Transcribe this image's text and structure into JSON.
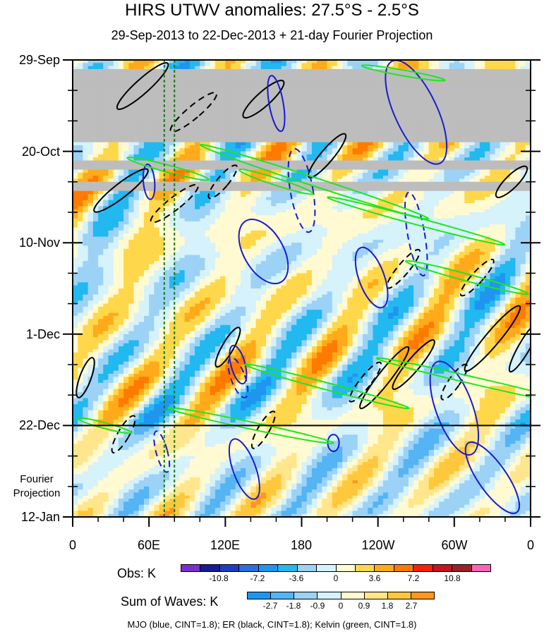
{
  "chart_data": {
    "type": "heatmap",
    "title": "HIRS UTWV anomalies: 27.5°S - 2.5°S",
    "subtitle": "29-Sep-2013 to 22-Dec-2013 + 21-day Fourier Projection",
    "y_tick_labels": [
      "29-Sep",
      "20-Oct",
      "10-Nov",
      "1-Dec",
      "22-Dec",
      "12-Jan"
    ],
    "y_tick_days": [
      0,
      21,
      42,
      63,
      84,
      105
    ],
    "y_axis": "time (days since 29-Sep-2013), increasing downward",
    "x_tick_labels": [
      "0",
      "60E",
      "120E",
      "180",
      "120W",
      "60W",
      "0"
    ],
    "x_tick_lons": [
      0,
      60,
      120,
      180,
      240,
      300,
      360
    ],
    "x_axis": "longitude (degrees east)",
    "projection_label": "Fourier Projection",
    "projection_start_day": 84,
    "missing_data_bands_days": [
      [
        2,
        19
      ],
      [
        23,
        25
      ],
      [
        28,
        30
      ]
    ],
    "reference_longitudes_dashed_green": [
      72,
      80
    ],
    "obs_colorbar": {
      "name": "Obs: K",
      "tick_labels": [
        "-10.8",
        "-7.2",
        "-3.6",
        "0",
        "3.6",
        "7.2",
        "10.8"
      ],
      "levels": [
        -12.6,
        -10.8,
        -9.0,
        -7.2,
        -5.4,
        -3.6,
        -1.8,
        0,
        1.8,
        3.6,
        5.4,
        7.2,
        9.0,
        10.8,
        12.6
      ],
      "colors": [
        "#7b2fd0",
        "#1a1a9c",
        "#1e3cc8",
        "#2a6ee6",
        "#1e96f0",
        "#22b8f0",
        "#9cd2f6",
        "#d6f2fb",
        "#fffad2",
        "#ffd74a",
        "#ffaa1a",
        "#ff7a00",
        "#ff1e00",
        "#c8141e",
        "#a01e28",
        "#ff64b4"
      ]
    },
    "waves_colorbar": {
      "name": "Sum of Waves: K",
      "tick_labels": [
        "-2.7",
        "-1.8",
        "-0.9",
        "0",
        "0.9",
        "1.8",
        "2.7"
      ],
      "levels": [
        -2.7,
        -1.8,
        -0.9,
        0,
        0.9,
        1.8,
        2.7
      ],
      "colors": [
        "#1e96f0",
        "#54b4f4",
        "#9cd2f6",
        "#d6f2fb",
        "#fffad2",
        "#ffe68c",
        "#ffc83c",
        "#ff961e"
      ]
    },
    "contours": [
      {
        "wave": "MJO",
        "color": "#1a1ad2",
        "cint": 1.8
      },
      {
        "wave": "ER",
        "color": "#000000",
        "cint": 1.8
      },
      {
        "wave": "Kelvin",
        "color": "#1ee61e",
        "cint": 1.8
      }
    ],
    "footer": "MJO (blue, CINT=1.8); ER (black, CINT=1.8); Kelvin (green, CINT=1.8)"
  }
}
